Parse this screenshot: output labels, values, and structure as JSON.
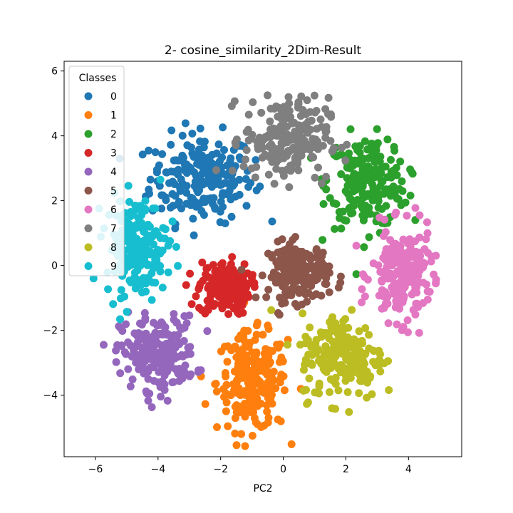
{
  "chart_data": {
    "type": "scatter",
    "title": "2- cosine_similarity_2Dim-Result",
    "xlabel": "PC2",
    "ylabel": "",
    "xlim": [
      -7.0,
      5.7
    ],
    "ylim": [
      -5.9,
      6.3
    ],
    "xticks": [
      -6,
      -4,
      -2,
      0,
      2,
      4
    ],
    "yticks": [
      -4,
      -2,
      0,
      2,
      4,
      6
    ],
    "grid": false,
    "legend": {
      "title": "Classes",
      "placement": "top-left"
    },
    "series": [
      {
        "name": "0",
        "color": "#1f77b4",
        "center": [
          -2.6,
          2.7
        ],
        "spread": [
          1.1,
          0.9
        ],
        "count": 220
      },
      {
        "name": "1",
        "color": "#ff7f0e",
        "center": [
          -1.0,
          -3.6
        ],
        "spread": [
          0.75,
          1.0
        ],
        "count": 220
      },
      {
        "name": "2",
        "color": "#2ca02c",
        "center": [
          2.7,
          2.6
        ],
        "spread": [
          0.85,
          0.95
        ],
        "count": 220
      },
      {
        "name": "3",
        "color": "#d62728",
        "center": [
          -1.9,
          -0.7
        ],
        "spread": [
          0.55,
          0.55
        ],
        "count": 160
      },
      {
        "name": "4",
        "color": "#9467bd",
        "center": [
          -4.0,
          -2.7
        ],
        "spread": [
          0.8,
          0.75
        ],
        "count": 220
      },
      {
        "name": "5",
        "color": "#8c564b",
        "center": [
          0.5,
          -0.2
        ],
        "spread": [
          0.65,
          0.6
        ],
        "count": 180
      },
      {
        "name": "6",
        "color": "#e377c2",
        "center": [
          3.8,
          -0.3
        ],
        "spread": [
          0.65,
          0.95
        ],
        "count": 200
      },
      {
        "name": "7",
        "color": "#7f7f7f",
        "center": [
          0.1,
          3.9
        ],
        "spread": [
          0.9,
          0.85
        ],
        "count": 220
      },
      {
        "name": "8",
        "color": "#bcbd22",
        "center": [
          1.9,
          -2.8
        ],
        "spread": [
          0.9,
          0.9
        ],
        "count": 200
      },
      {
        "name": "9",
        "color": "#17becf",
        "center": [
          -4.7,
          0.6
        ],
        "spread": [
          0.65,
          1.0
        ],
        "count": 200
      }
    ]
  }
}
